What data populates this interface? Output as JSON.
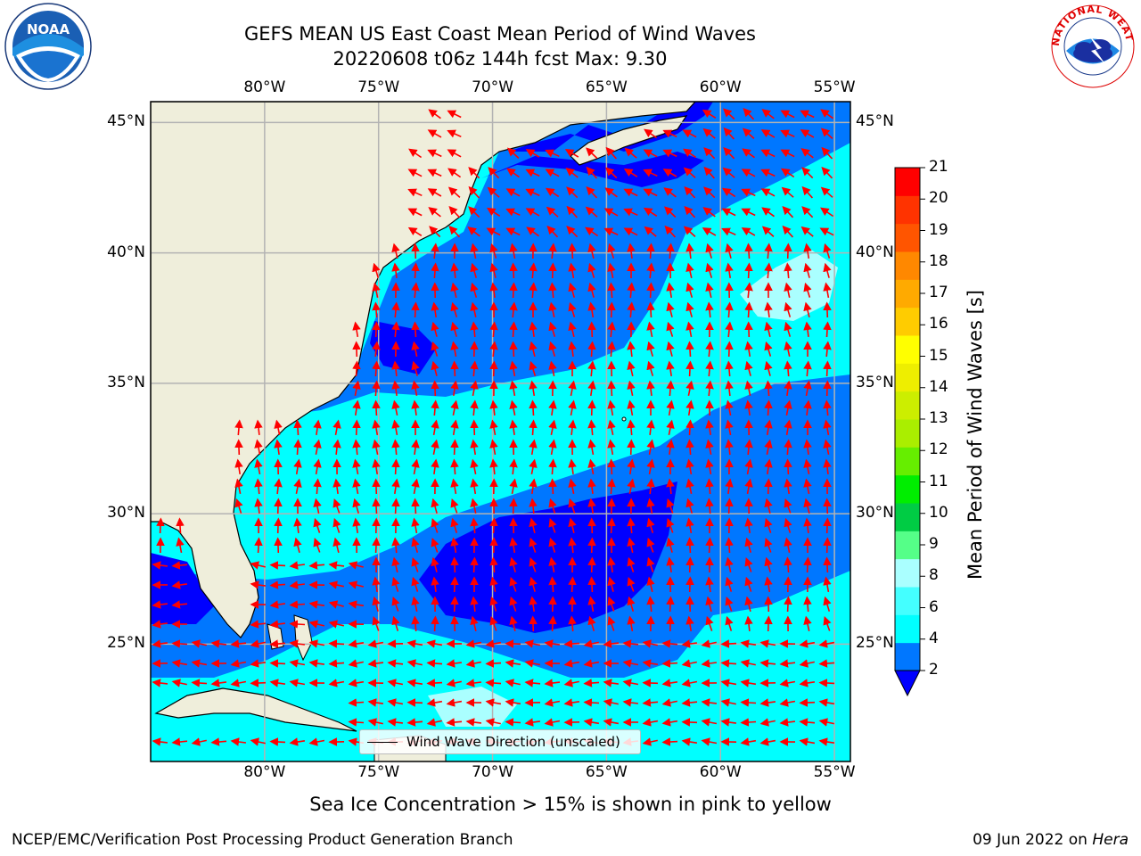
{
  "title": {
    "line1": "GEFS MEAN US East Coast Mean Period of Wind Waves",
    "line2": "20220608 t06z 144h fcst   Max: 9.30"
  },
  "logos": {
    "left": {
      "text": "NOAA",
      "icon": "noaa-logo"
    },
    "right": {
      "text": "NATIONAL WEATHER SERVICE",
      "icon": "nws-logo"
    }
  },
  "map": {
    "lon_labels": [
      "80°W",
      "75°W",
      "70°W",
      "65°W",
      "60°W",
      "55°W"
    ],
    "lat_labels": [
      "45°N",
      "40°N",
      "35°N",
      "30°N",
      "25°N"
    ],
    "lon_values": [
      -80,
      -75,
      -70,
      -65,
      -60,
      -55
    ],
    "lat_values": [
      45,
      40,
      35,
      30,
      25
    ],
    "extent": {
      "lon_min": -85,
      "lon_max": -54.3,
      "lat_min": 20.5,
      "lat_max": 45.8
    },
    "colors": {
      "land": "#efeedb",
      "grid": "#b3b3b3",
      "arrow": "#ff0000"
    }
  },
  "legend": {
    "label": "Wind Wave Direction (unscaled)"
  },
  "colorbar": {
    "label": "Mean Period of Wind Waves [s]",
    "ticks": [
      "2",
      "4",
      "6",
      "8",
      "9",
      "10",
      "11",
      "12",
      "13",
      "14",
      "15",
      "16",
      "17",
      "18",
      "19",
      "20",
      "21"
    ],
    "colors": [
      "#0077ff",
      "#00ffff",
      "#44ffff",
      "#aaffff",
      "#55ff88",
      "#00cc44",
      "#00ee00",
      "#66ee00",
      "#aaee00",
      "#ccee00",
      "#eeee00",
      "#ffff00",
      "#ffcc00",
      "#ffaa00",
      "#ff8800",
      "#ff5500",
      "#ff3300",
      "#ff0000"
    ],
    "under_color": "#0000ff"
  },
  "notes": {
    "sea_ice": "Sea Ice Concentration > 15% is shown in pink to yellow"
  },
  "footer": {
    "left": "NCEP/EMC/Verification Post Processing Product Generation Branch",
    "right_prefix": "09 Jun 2022 on ",
    "right_machine": "Hera"
  }
}
